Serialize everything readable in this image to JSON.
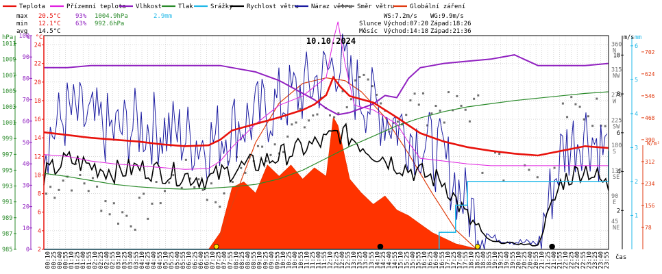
{
  "chart_data": {
    "type": "line",
    "title": "10.10.2024",
    "legend": [
      {
        "name": "Teplota",
        "color": "#e8120c"
      },
      {
        "name": "Přízemní teplota",
        "color": "#e020e0"
      },
      {
        "name": "Vlhkost",
        "color": "#9020c0"
      },
      {
        "name": "Tlak",
        "color": "#2a8a2a"
      },
      {
        "name": "Srážky",
        "color": "#20b8e8"
      },
      {
        "name": "Rychlost větru",
        "color": "#000000"
      },
      {
        "name": "Náraz větru",
        "color": "#1a1aa0"
      },
      {
        "name": "Směr větru",
        "color": "#707070"
      },
      {
        "name": "Globální záření",
        "color": "#e03a10"
      }
    ],
    "stats": {
      "max": {
        "label": "max",
        "temp": "20.5°C",
        "hum": "93%",
        "press": "1004.9hPa",
        "rain": "2.9mm"
      },
      "min": {
        "label": "min",
        "temp": "12.1°C",
        "hum": "63%",
        "press": "992.6hPa"
      },
      "avg": {
        "label": "avg",
        "temp": "14.5°C"
      }
    },
    "info": {
      "ws": "WS:7.2m/s",
      "wg": "WG:9.9m/s",
      "sun_label": "Slunce",
      "sun_rise": "Východ:07:20",
      "sun_set": "Západ:18:26",
      "moon_label": "Měsíc",
      "moon_rise": "Východ:14:18",
      "moon_set": "Západ:21:36"
    },
    "axes_left": {
      "hpa_unit": "hPa",
      "hpa_ticks": [
        "985",
        "987",
        "989",
        "991",
        "993",
        "995",
        "997",
        "999",
        "1001",
        "1003",
        "1005",
        "1007",
        "1009",
        "1011"
      ],
      "pct_unit": "%",
      "pct_ticks": [
        "0",
        "10",
        "20",
        "30",
        "40",
        "50",
        "60",
        "70",
        "80",
        "90",
        "100"
      ],
      "temp_unit": "°C",
      "temp_ticks": [
        "2",
        "4",
        "6",
        "8",
        "10",
        "12",
        "14",
        "16",
        "18",
        "20",
        "22",
        "24"
      ]
    },
    "axes_right": {
      "dir_ticks": [
        {
          "v": 360,
          "t1": "360",
          "t2": "N"
        },
        {
          "v": 315,
          "t1": "315",
          "t2": "NW"
        },
        {
          "v": 270,
          "t1": "270",
          "t2": "W"
        },
        {
          "v": 225,
          "t1": "225",
          "t2": "SW"
        },
        {
          "v": 180,
          "t1": "180",
          "t2": "S"
        },
        {
          "v": 135,
          "t1": "135",
          "t2": "SE"
        },
        {
          "v": 90,
          "t1": "90",
          "t2": "E"
        },
        {
          "v": 45,
          "t1": "45",
          "t2": "NE"
        }
      ],
      "ms_unit": "m/s",
      "ms_ticks": [
        "2",
        "4",
        "6",
        "8",
        "10"
      ],
      "mm_unit": "mm",
      "mm_ticks": [
        "1",
        "2",
        "3",
        "4",
        "5",
        "6"
      ],
      "wm2_unit": "W/m²",
      "wm2_ticks": [
        "78",
        "156",
        "234",
        "312",
        "390",
        "468",
        "546",
        "624",
        "702"
      ]
    },
    "x_unit": "čas",
    "time_labels": [
      "00:10",
      "00:25",
      "00:40",
      "00:55",
      "01:10",
      "01:25",
      "01:40",
      "01:55",
      "02:10",
      "02:25",
      "02:40",
      "02:55",
      "03:10",
      "03:25",
      "03:40",
      "03:55",
      "04:10",
      "04:25",
      "04:40",
      "04:55",
      "05:10",
      "05:25",
      "05:40",
      "05:55",
      "06:10",
      "06:25",
      "06:40",
      "06:55",
      "07:10",
      "07:25",
      "07:40",
      "07:55",
      "08:10",
      "08:25",
      "08:40",
      "08:55",
      "09:10",
      "09:25",
      "09:40",
      "09:55",
      "10:10",
      "10:25",
      "10:40",
      "10:55",
      "11:10",
      "11:25",
      "11:40",
      "11:55",
      "12:10",
      "12:25",
      "12:40",
      "12:55",
      "13:10",
      "13:25",
      "13:40",
      "13:55",
      "14:10",
      "14:25",
      "14:40",
      "14:55",
      "15:10",
      "15:25",
      "15:40",
      "15:55",
      "16:10",
      "16:25",
      "16:40",
      "16:55",
      "17:10",
      "17:25",
      "17:40",
      "17:55",
      "18:10",
      "18:25",
      "18:40",
      "18:55",
      "19:10",
      "19:25",
      "19:40",
      "19:55",
      "20:10",
      "20:25",
      "20:40",
      "20:55",
      "21:10",
      "21:25",
      "21:40",
      "21:55",
      "22:10",
      "22:25",
      "22:40",
      "22:55",
      "23:10",
      "23:25",
      "23:40",
      "23:55"
    ],
    "xlim_hours": [
      0,
      24
    ],
    "series": {
      "temperature_c": {
        "x": [
          0,
          1,
          2,
          3,
          4,
          5,
          6,
          7,
          7.5,
          8,
          9,
          10,
          11,
          11.5,
          12,
          12.3,
          12.6,
          13,
          14,
          15,
          16,
          17,
          18,
          19,
          20,
          21,
          22,
          23,
          24
        ],
        "y": [
          14.6,
          14.3,
          14.0,
          13.8,
          13.6,
          13.3,
          13.1,
          13.2,
          13.8,
          14.8,
          15.5,
          16.2,
          17.0,
          17.6,
          18.6,
          20.5,
          19.5,
          18.5,
          17.8,
          16.2,
          14.5,
          13.6,
          13.0,
          12.6,
          12.3,
          12.1,
          12.6,
          13.1,
          12.9
        ]
      },
      "ground_temp_c": {
        "x": [
          0,
          1,
          2,
          3,
          4,
          5,
          6,
          7,
          7.5,
          8,
          9,
          10,
          11,
          11.5,
          12,
          12.3,
          12.5,
          12.8,
          13.2,
          14,
          15,
          15.5,
          16,
          17,
          18,
          19,
          20,
          21,
          22,
          23,
          24
        ],
        "y": [
          12.2,
          12.0,
          11.5,
          11.2,
          11.0,
          10.8,
          10.6,
          10.7,
          11.5,
          13,
          15.5,
          17.5,
          18.5,
          19.5,
          20.5,
          24.5,
          26.5,
          22.0,
          17.5,
          17.0,
          15.5,
          13.5,
          11.8,
          11.5,
          11.2,
          11.0,
          11.0,
          11.0,
          11.0,
          11.0,
          11.0
        ]
      },
      "humidity_pct": {
        "x": [
          0,
          1,
          2,
          3,
          4,
          5,
          6,
          7,
          7.5,
          8,
          9,
          10,
          11,
          11.5,
          12,
          12.5,
          13,
          14,
          14.5,
          15,
          15.5,
          16,
          17,
          18,
          19,
          20,
          21,
          22,
          23,
          24
        ],
        "y": [
          85,
          85,
          86,
          86,
          86,
          86,
          86,
          86,
          86,
          85,
          83,
          79,
          73,
          70,
          66,
          63,
          64,
          68,
          72,
          71,
          80,
          85,
          87,
          88,
          89,
          91,
          86,
          86,
          86,
          87
        ]
      },
      "pressure_hpa": {
        "x": [
          0,
          1,
          2,
          3,
          4,
          5,
          6,
          7,
          8,
          9,
          10,
          11,
          12,
          13,
          14,
          15,
          16,
          17,
          18,
          19,
          20,
          21,
          22,
          23,
          24
        ],
        "y": [
          994.6,
          994.2,
          993.7,
          993.2,
          992.9,
          992.7,
          992.6,
          992.7,
          992.9,
          993.2,
          993.9,
          995.0,
          996.5,
          998.0,
          999.3,
          1000.6,
          1001.6,
          1002.4,
          1003.0,
          1003.4,
          1003.8,
          1004.1,
          1004.4,
          1004.7,
          1004.9
        ]
      },
      "rain_mm": {
        "x": [
          0,
          16.4,
          16.8,
          17.5,
          18.0,
          18.4,
          19.0,
          23.7,
          24
        ],
        "y": [
          0,
          0,
          0.5,
          1.3,
          2.0,
          2.0,
          2.0,
          2.0,
          2.9
        ]
      },
      "wind_ms": {
        "x": [
          0,
          1,
          2,
          3,
          4,
          5,
          6,
          7,
          8,
          9,
          10,
          11,
          12,
          12.5,
          13,
          14,
          15,
          16,
          17,
          18,
          19,
          20,
          21,
          22,
          23,
          24
        ],
        "y": [
          3.8,
          4.6,
          4.3,
          4.0,
          4.2,
          4.0,
          3.8,
          3.6,
          4.1,
          4.4,
          4.8,
          5.2,
          5.6,
          6.0,
          5.8,
          5.0,
          4.4,
          3.9,
          3.5,
          1.6,
          0.4,
          0.3,
          0.2,
          3.5,
          4.2,
          3.2
        ]
      },
      "gust_ms": {
        "x": [
          0,
          1,
          2,
          3,
          4,
          5,
          6,
          7,
          8,
          9,
          10,
          11,
          12,
          12.5,
          13,
          14,
          15,
          16,
          17,
          18,
          19,
          20,
          21,
          22,
          23,
          24
        ],
        "y": [
          5.5,
          7.0,
          6.5,
          6.0,
          6.4,
          6.2,
          5.8,
          5.5,
          6.3,
          6.8,
          7.5,
          8.2,
          9.0,
          9.9,
          8.6,
          7.4,
          6.5,
          5.6,
          4.6,
          2.2,
          0.6,
          0.4,
          0.3,
          5.0,
          6.2,
          4.8
        ]
      },
      "solar_wm2": {
        "x": [
          0,
          7.0,
          7.5,
          8,
          8.5,
          9,
          9.5,
          10,
          10.5,
          11,
          11.5,
          12,
          12.3,
          12.5,
          13,
          13.5,
          14,
          14.5,
          15,
          15.5,
          16,
          16.5,
          17,
          17.5,
          18,
          18.5,
          24
        ],
        "y": [
          0,
          0,
          60,
          220,
          240,
          200,
          300,
          260,
          300,
          250,
          290,
          260,
          470,
          440,
          250,
          200,
          160,
          190,
          140,
          120,
          90,
          60,
          40,
          20,
          10,
          0,
          0
        ]
      },
      "clear_sky_wm2": {
        "x": [
          7.3,
          8,
          9,
          10,
          11,
          12,
          12.8,
          13.5,
          14.5,
          15.5,
          16.5,
          17.5,
          18.4
        ],
        "y": [
          0,
          160,
          380,
          520,
          590,
          610,
          600,
          560,
          470,
          340,
          200,
          70,
          0
        ]
      }
    }
  }
}
